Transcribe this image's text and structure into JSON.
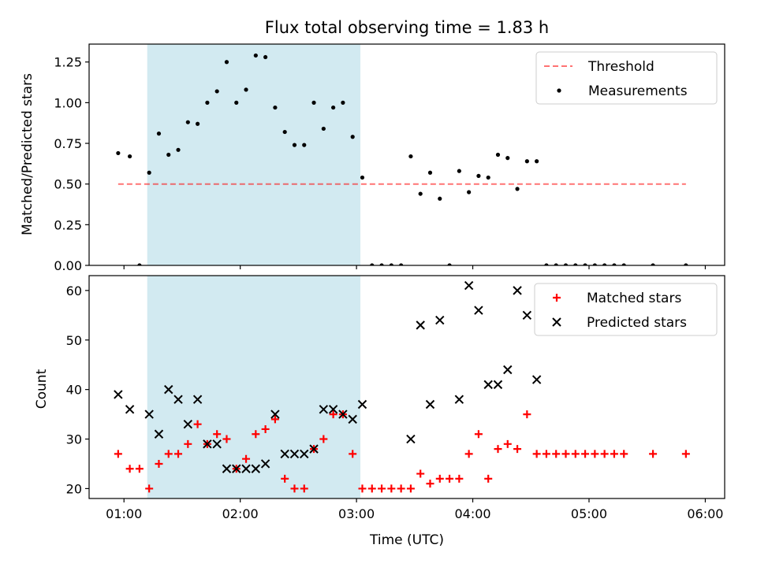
{
  "figure": {
    "title": "Flux total observing time = 1.83 h",
    "xlabel": "Time (UTC)"
  },
  "chart_data": [
    {
      "type": "scatter",
      "panel": "top",
      "ylabel": "Matched/Predicted stars",
      "ylim": [
        0,
        1.36
      ],
      "xlim": [
        "00:42",
        "06:10"
      ],
      "yticks": [
        0.0,
        0.25,
        0.5,
        0.75,
        1.0,
        1.25
      ],
      "ytick_labels": [
        "0.00",
        "0.25",
        "0.50",
        "0.75",
        "1.00",
        "1.25"
      ],
      "shaded_span": [
        "01:12",
        "03:02"
      ],
      "shade_color": "#add8e6",
      "legend_position": "upper right",
      "series": [
        {
          "name": "Threshold",
          "kind": "dashed-line",
          "color": "#ff0000",
          "x": [
            "00:57",
            "05:50"
          ],
          "y": [
            0.5,
            0.5
          ]
        },
        {
          "name": "Measurements",
          "kind": "dot",
          "color": "#000000",
          "x": [
            "00:57",
            "01:03",
            "01:08",
            "01:13",
            "01:18",
            "01:23",
            "01:28",
            "01:33",
            "01:38",
            "01:43",
            "01:48",
            "01:53",
            "01:58",
            "02:03",
            "02:08",
            "02:13",
            "02:18",
            "02:23",
            "02:28",
            "02:33",
            "02:38",
            "02:43",
            "02:48",
            "02:53",
            "02:58",
            "03:03",
            "03:08",
            "03:13",
            "03:18",
            "03:23",
            "03:28",
            "03:33",
            "03:38",
            "03:43",
            "03:48",
            "03:53",
            "03:58",
            "04:03",
            "04:08",
            "04:13",
            "04:18",
            "04:23",
            "04:28",
            "04:33",
            "04:38",
            "04:43",
            "04:48",
            "04:53",
            "04:58",
            "05:03",
            "05:08",
            "05:13",
            "05:18",
            "05:33",
            "05:50"
          ],
          "y": [
            0.69,
            0.67,
            0.0,
            0.57,
            0.81,
            0.68,
            0.71,
            0.88,
            0.87,
            1.0,
            1.07,
            1.25,
            1.0,
            1.08,
            1.29,
            1.28,
            0.97,
            0.82,
            0.74,
            0.74,
            1.0,
            0.84,
            0.97,
            1.0,
            0.79,
            0.54,
            0.0,
            0.0,
            0.0,
            0.0,
            0.67,
            0.44,
            0.57,
            0.41,
            0.0,
            0.58,
            0.45,
            0.55,
            0.54,
            0.68,
            0.66,
            0.47,
            0.64,
            0.64,
            0.0,
            0.0,
            0.0,
            0.0,
            0.0,
            0.0,
            0.0,
            0.0,
            0.0,
            0.0,
            0.0
          ]
        }
      ]
    },
    {
      "type": "scatter",
      "panel": "bottom",
      "ylabel": "Count",
      "ylim": [
        18,
        63
      ],
      "xlim": [
        "00:42",
        "06:10"
      ],
      "yticks": [
        20,
        30,
        40,
        50,
        60
      ],
      "xticks": [
        "01:00",
        "02:00",
        "03:00",
        "04:00",
        "05:00",
        "06:00"
      ],
      "shaded_span": [
        "01:12",
        "03:02"
      ],
      "shade_color": "#add8e6",
      "legend_position": "upper right",
      "series": [
        {
          "name": "Matched stars",
          "kind": "plus",
          "color": "#ff0000",
          "x": [
            "00:57",
            "01:03",
            "01:08",
            "01:13",
            "01:18",
            "01:23",
            "01:28",
            "01:33",
            "01:38",
            "01:43",
            "01:48",
            "01:53",
            "01:58",
            "02:03",
            "02:08",
            "02:13",
            "02:18",
            "02:23",
            "02:28",
            "02:33",
            "02:38",
            "02:43",
            "02:48",
            "02:53",
            "02:58",
            "03:03",
            "03:08",
            "03:13",
            "03:18",
            "03:23",
            "03:28",
            "03:33",
            "03:38",
            "03:43",
            "03:48",
            "03:53",
            "03:58",
            "04:03",
            "04:08",
            "04:13",
            "04:18",
            "04:23",
            "04:28",
            "04:33",
            "04:38",
            "04:43",
            "04:48",
            "04:53",
            "04:58",
            "05:03",
            "05:08",
            "05:13",
            "05:18",
            "05:33",
            "05:50"
          ],
          "y": [
            27,
            24,
            24,
            20,
            25,
            27,
            27,
            29,
            33,
            29,
            31,
            30,
            24,
            26,
            31,
            32,
            34,
            22,
            20,
            20,
            28,
            30,
            35,
            35,
            27,
            20,
            20,
            20,
            20,
            20,
            20,
            23,
            21,
            22,
            22,
            22,
            27,
            31,
            22,
            28,
            29,
            28,
            35,
            27,
            27,
            27,
            27,
            27,
            27,
            27,
            27,
            27,
            27,
            27,
            27
          ]
        },
        {
          "name": "Predicted stars",
          "kind": "x",
          "color": "#000000",
          "x": [
            "00:57",
            "01:03",
            "01:13",
            "01:18",
            "01:23",
            "01:28",
            "01:33",
            "01:38",
            "01:43",
            "01:48",
            "01:53",
            "01:58",
            "02:03",
            "02:08",
            "02:13",
            "02:18",
            "02:23",
            "02:28",
            "02:33",
            "02:38",
            "02:43",
            "02:48",
            "02:53",
            "02:58",
            "03:03",
            "03:28",
            "03:33",
            "03:38",
            "03:43",
            "03:53",
            "03:58",
            "04:03",
            "04:08",
            "04:13",
            "04:18",
            "04:23",
            "04:28",
            "04:33"
          ],
          "y": [
            39,
            36,
            35,
            31,
            40,
            38,
            33,
            38,
            29,
            29,
            24,
            24,
            24,
            24,
            25,
            35,
            27,
            27,
            27,
            28,
            36,
            36,
            35,
            34,
            37,
            30,
            53,
            37,
            54,
            38,
            61,
            56,
            41,
            41,
            44,
            60,
            55,
            42
          ]
        }
      ]
    }
  ]
}
